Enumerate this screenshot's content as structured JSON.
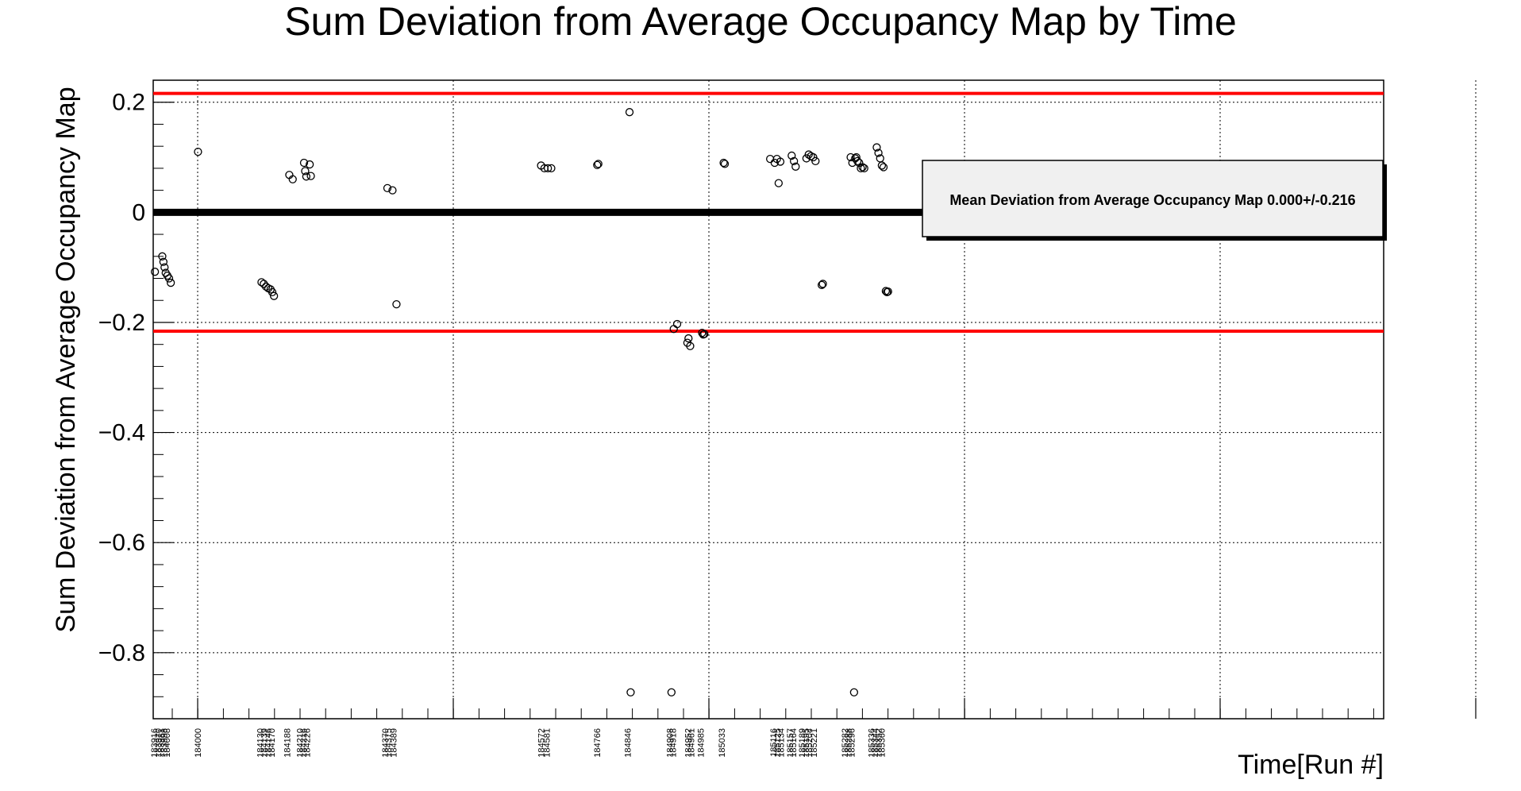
{
  "chart_data": {
    "type": "scatter",
    "title": "Sum Deviation from Average Occupancy Map by Time",
    "xlabel": "Time[Run #]",
    "ylabel": "Sum Deviation from Average Occupancy Map",
    "ylim": [
      -0.92,
      0.24
    ],
    "y_ticks": [
      {
        "v": 0.2,
        "label": "0.2"
      },
      {
        "v": 0,
        "label": "0"
      },
      {
        "v": -0.2,
        "label": "−0.2"
      },
      {
        "v": -0.4,
        "label": "−0.4"
      },
      {
        "v": -0.6,
        "label": "−0.6"
      },
      {
        "v": -0.8,
        "label": "−0.8"
      }
    ],
    "grid": true,
    "x_tick_labels": [
      {
        "x": 0.3,
        "label": "183916"
      },
      {
        "x": 1.0,
        "label": "183970"
      },
      {
        "x": 1.5,
        "label": "183981"
      },
      {
        "x": 2.0,
        "label": "183998"
      },
      {
        "x": 2.5,
        "label": "184008"
      },
      {
        "x": 8.0,
        "label": "184000"
      },
      {
        "x": 19.0,
        "label": "184130"
      },
      {
        "x": 19.7,
        "label": "184139"
      },
      {
        "x": 20.4,
        "label": "184146"
      },
      {
        "x": 21.0,
        "label": "184170"
      },
      {
        "x": 23.7,
        "label": "184188"
      },
      {
        "x": 26.0,
        "label": "184210"
      },
      {
        "x": 26.6,
        "label": "184216"
      },
      {
        "x": 27.2,
        "label": "184226"
      },
      {
        "x": 41.0,
        "label": "184370"
      },
      {
        "x": 41.6,
        "label": "184375"
      },
      {
        "x": 42.5,
        "label": "184389"
      },
      {
        "x": 68.5,
        "label": "184572"
      },
      {
        "x": 69.5,
        "label": "184581"
      },
      {
        "x": 78.4,
        "label": "184766"
      },
      {
        "x": 83.8,
        "label": "184846"
      },
      {
        "x": 91.2,
        "label": "184908"
      },
      {
        "x": 91.8,
        "label": "184918"
      },
      {
        "x": 94.4,
        "label": "184952"
      },
      {
        "x": 95.0,
        "label": "184961"
      },
      {
        "x": 96.7,
        "label": "184985"
      },
      {
        "x": 100.4,
        "label": "185033"
      },
      {
        "x": 109.5,
        "label": "185116"
      },
      {
        "x": 110.2,
        "label": "185125"
      },
      {
        "x": 110.8,
        "label": "185134"
      },
      {
        "x": 112.4,
        "label": "185157"
      },
      {
        "x": 113.0,
        "label": "185164"
      },
      {
        "x": 114.5,
        "label": "185189"
      },
      {
        "x": 115.2,
        "label": "185195"
      },
      {
        "x": 115.8,
        "label": "185204"
      },
      {
        "x": 116.6,
        "label": "185221"
      },
      {
        "x": 122.1,
        "label": "185282"
      },
      {
        "x": 122.7,
        "label": "185288"
      },
      {
        "x": 123.3,
        "label": "185296"
      },
      {
        "x": 126.8,
        "label": "185336"
      },
      {
        "x": 127.4,
        "label": "185344"
      },
      {
        "x": 128.0,
        "label": "185352"
      },
      {
        "x": 128.6,
        "label": "185360"
      }
    ],
    "thresholds": [
      0.216,
      -0.216
    ],
    "x_range": [
      0,
      217
    ],
    "zero_band_x": [
      0,
      217
    ],
    "series": [
      {
        "points": [
          {
            "x": 0.3,
            "y": -0.108
          },
          {
            "x": 1.6,
            "y": -0.08
          },
          {
            "x": 1.8,
            "y": -0.09
          },
          {
            "x": 2.0,
            "y": -0.1
          },
          {
            "x": 2.2,
            "y": -0.11
          },
          {
            "x": 2.5,
            "y": -0.115
          },
          {
            "x": 2.8,
            "y": -0.12
          },
          {
            "x": 3.1,
            "y": -0.128
          },
          {
            "x": 7.9,
            "y": 0.11
          },
          {
            "x": 19.1,
            "y": -0.127
          },
          {
            "x": 19.5,
            "y": -0.13
          },
          {
            "x": 19.9,
            "y": -0.135
          },
          {
            "x": 20.3,
            "y": -0.138
          },
          {
            "x": 20.7,
            "y": -0.14
          },
          {
            "x": 21.0,
            "y": -0.145
          },
          {
            "x": 21.3,
            "y": -0.152
          },
          {
            "x": 24.0,
            "y": 0.068
          },
          {
            "x": 24.6,
            "y": 0.06
          },
          {
            "x": 26.6,
            "y": 0.09
          },
          {
            "x": 26.8,
            "y": 0.075
          },
          {
            "x": 27.0,
            "y": 0.065
          },
          {
            "x": 27.6,
            "y": 0.087
          },
          {
            "x": 27.8,
            "y": 0.066
          },
          {
            "x": 41.3,
            "y": 0.044
          },
          {
            "x": 42.2,
            "y": 0.04
          },
          {
            "x": 42.9,
            "y": -0.167
          },
          {
            "x": 68.4,
            "y": 0.085
          },
          {
            "x": 69.0,
            "y": 0.08
          },
          {
            "x": 69.6,
            "y": 0.08
          },
          {
            "x": 70.2,
            "y": 0.08
          },
          {
            "x": 78.3,
            "y": 0.086
          },
          {
            "x": 78.5,
            "y": 0.088
          },
          {
            "x": 84.0,
            "y": 0.182
          },
          {
            "x": 84.2,
            "y": -0.872
          },
          {
            "x": 91.4,
            "y": -0.872
          },
          {
            "x": 91.8,
            "y": -0.212
          },
          {
            "x": 92.4,
            "y": -0.203
          },
          {
            "x": 94.2,
            "y": -0.237
          },
          {
            "x": 94.4,
            "y": -0.229
          },
          {
            "x": 94.7,
            "y": -0.243
          },
          {
            "x": 96.8,
            "y": -0.219
          },
          {
            "x": 97.0,
            "y": -0.222
          },
          {
            "x": 97.2,
            "y": -0.221
          },
          {
            "x": 100.6,
            "y": 0.09
          },
          {
            "x": 100.8,
            "y": 0.088
          },
          {
            "x": 108.8,
            "y": 0.097
          },
          {
            "x": 109.6,
            "y": 0.09
          },
          {
            "x": 110.0,
            "y": 0.097
          },
          {
            "x": 110.3,
            "y": 0.053
          },
          {
            "x": 110.6,
            "y": 0.092
          },
          {
            "x": 112.6,
            "y": 0.103
          },
          {
            "x": 113.0,
            "y": 0.093
          },
          {
            "x": 113.3,
            "y": 0.083
          },
          {
            "x": 115.2,
            "y": 0.098
          },
          {
            "x": 115.6,
            "y": 0.105
          },
          {
            "x": 116.0,
            "y": 0.102
          },
          {
            "x": 116.4,
            "y": 0.1
          },
          {
            "x": 116.8,
            "y": 0.093
          },
          {
            "x": 117.9,
            "y": -0.132
          },
          {
            "x": 118.1,
            "y": -0.13
          },
          {
            "x": 123.0,
            "y": 0.1
          },
          {
            "x": 123.3,
            "y": 0.09
          },
          {
            "x": 123.6,
            "y": -0.872
          },
          {
            "x": 123.8,
            "y": 0.098
          },
          {
            "x": 124.0,
            "y": 0.1
          },
          {
            "x": 124.2,
            "y": 0.093
          },
          {
            "x": 124.5,
            "y": 0.09
          },
          {
            "x": 124.8,
            "y": 0.08
          },
          {
            "x": 125.1,
            "y": 0.082
          },
          {
            "x": 125.4,
            "y": 0.08
          },
          {
            "x": 127.6,
            "y": 0.118
          },
          {
            "x": 127.9,
            "y": 0.108
          },
          {
            "x": 128.2,
            "y": 0.098
          },
          {
            "x": 128.5,
            "y": 0.085
          },
          {
            "x": 128.8,
            "y": 0.082
          },
          {
            "x": 129.2,
            "y": -0.143
          },
          {
            "x": 129.4,
            "y": -0.145
          },
          {
            "x": 129.6,
            "y": -0.144
          }
        ]
      }
    ],
    "stats_box": {
      "text": "Mean Deviation from Average Occupancy Map 0.000+/-0.216"
    },
    "colors": {
      "threshold_line": "#ff0000",
      "markers": "#000000",
      "grid": "#000000",
      "stats_box_fill": "#f0f0f0"
    }
  }
}
